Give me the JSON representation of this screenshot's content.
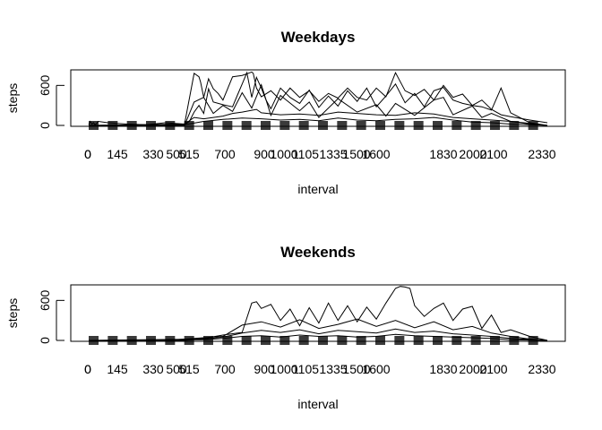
{
  "chart_data": [
    {
      "type": "line",
      "title": "Weekdays",
      "xlabel": "interval",
      "ylabel": "steps",
      "yticks": [
        0,
        600
      ],
      "ylim": [
        0,
        806
      ],
      "x_tick_labels": [
        "0",
        "0",
        "145",
        "330",
        "500",
        "515",
        "700",
        "900",
        "1000",
        "1105",
        "1335",
        "1500",
        "1600",
        "1830",
        "2000",
        "2100",
        "2330"
      ],
      "grid": false,
      "legend": "none",
      "line_color": "#000000",
      "series": [
        {
          "x": [
            0,
            5,
            10,
            15,
            20,
            25,
            30,
            100,
            200,
            300,
            400,
            500,
            530,
            545,
            550,
            600,
            615,
            630,
            645,
            700,
            730,
            800,
            830,
            835,
            845,
            900,
            930,
            1000,
            1030,
            1100,
            1130,
            1200,
            1230,
            1300,
            1330,
            1400,
            1430,
            1500,
            1530,
            1600,
            1630,
            1700,
            1730,
            1800,
            1830,
            1900,
            1930,
            2000,
            2030,
            2100,
            2130,
            2200,
            2300,
            2355
          ],
          "y": [
            10,
            60,
            20,
            40,
            10,
            30,
            60,
            40,
            20,
            10,
            40,
            20,
            780,
            730,
            650,
            420,
            700,
            550,
            480,
            380,
            730,
            750,
            800,
            780,
            560,
            430,
            520,
            380,
            560,
            420,
            520,
            360,
            480,
            410,
            560,
            420,
            380,
            560,
            430,
            790,
            520,
            450,
            540,
            380,
            600,
            420,
            470,
            300,
            380,
            240,
            160,
            130,
            80,
            40
          ]
        },
        {
          "x": [
            0,
            100,
            200,
            300,
            400,
            500,
            515,
            530,
            545,
            600,
            615,
            630,
            700,
            730,
            745,
            800,
            815,
            830,
            845,
            900,
            915,
            930,
            1000,
            1030,
            1100,
            1130,
            1200,
            1230,
            1300,
            1330,
            1400,
            1430,
            1500,
            1530,
            1600,
            1630,
            1700,
            1730,
            1800,
            1830,
            1900,
            1930,
            2000,
            2030,
            2100,
            2130,
            2200,
            2300,
            2355
          ],
          "y": [
            0,
            0,
            0,
            0,
            0,
            10,
            60,
            200,
            300,
            180,
            550,
            350,
            310,
            280,
            450,
            620,
            790,
            420,
            720,
            560,
            380,
            250,
            560,
            420,
            330,
            530,
            270,
            440,
            290,
            520,
            360,
            560,
            280,
            440,
            620,
            340,
            480,
            280,
            520,
            570,
            380,
            330,
            300,
            280,
            230,
            560,
            190,
            40,
            0
          ]
        },
        {
          "x": [
            0,
            300,
            500,
            530,
            600,
            630,
            700,
            730,
            800,
            830,
            900,
            930,
            1000,
            1100,
            1130,
            1200,
            1300,
            1400,
            1500,
            1530,
            1600,
            1700,
            1800,
            1830,
            1900,
            2000,
            2030,
            2100,
            2200,
            2300,
            2355
          ],
          "y": [
            0,
            0,
            0,
            350,
            420,
            180,
            300,
            210,
            490,
            260,
            610,
            150,
            450,
            220,
            350,
            120,
            400,
            200,
            310,
            140,
            330,
            150,
            380,
            420,
            160,
            290,
            120,
            180,
            60,
            20,
            0
          ]
        },
        {
          "x": [
            0,
            500,
            530,
            600,
            700,
            730,
            800,
            845,
            900,
            1000,
            1100,
            1200,
            1300,
            1400,
            1500,
            1600,
            1700,
            1800,
            1900,
            2000,
            2100,
            2200,
            2300,
            2355
          ],
          "y": [
            0,
            20,
            120,
            100,
            140,
            180,
            200,
            240,
            190,
            160,
            170,
            150,
            200,
            180,
            160,
            150,
            190,
            170,
            120,
            100,
            80,
            60,
            30,
            0
          ]
        },
        {
          "x": [
            0,
            500,
            600,
            700,
            800,
            900,
            1000,
            1100,
            1200,
            1300,
            1400,
            1500,
            1600,
            1700,
            1800,
            1900,
            2000,
            2100,
            2200,
            2355
          ],
          "y": [
            0,
            10,
            60,
            90,
            110,
            100,
            80,
            90,
            70,
            110,
            80,
            70,
            90,
            100,
            120,
            80,
            50,
            40,
            20,
            0
          ]
        }
      ]
    },
    {
      "type": "line",
      "title": "Weekends",
      "xlabel": "interval",
      "ylabel": "steps",
      "yticks": [
        0,
        600
      ],
      "ylim": [
        0,
        806
      ],
      "x_tick_labels": [
        "0",
        "0",
        "145",
        "330",
        "500",
        "515",
        "700",
        "900",
        "1000",
        "1105",
        "1335",
        "1500",
        "1600",
        "1830",
        "2000",
        "2100",
        "2330"
      ],
      "grid": false,
      "legend": "none",
      "line_color": "#000000",
      "series": [
        {
          "x": [
            0,
            100,
            200,
            300,
            400,
            500,
            600,
            700,
            800,
            830,
            845,
            900,
            930,
            1000,
            1030,
            1100,
            1130,
            1200,
            1230,
            1300,
            1330,
            1400,
            1430,
            1500,
            1530,
            1600,
            1615,
            1630,
            1645,
            1700,
            1730,
            1800,
            1830,
            1900,
            1930,
            2000,
            2030,
            2100,
            2130,
            2200,
            2300,
            2355
          ],
          "y": [
            0,
            0,
            0,
            0,
            0,
            0,
            30,
            80,
            120,
            560,
            580,
            480,
            540,
            300,
            470,
            220,
            490,
            260,
            560,
            300,
            520,
            280,
            500,
            320,
            560,
            780,
            810,
            800,
            780,
            520,
            360,
            480,
            560,
            300,
            470,
            510,
            180,
            380,
            120,
            160,
            60,
            0
          ]
        },
        {
          "x": [
            0,
            200,
            400,
            600,
            700,
            800,
            900,
            1000,
            1100,
            1200,
            1300,
            1400,
            1500,
            1600,
            1700,
            1800,
            1900,
            2000,
            2100,
            2200,
            2300,
            2355
          ],
          "y": [
            0,
            0,
            0,
            40,
            60,
            230,
            280,
            200,
            310,
            180,
            240,
            320,
            210,
            300,
            190,
            280,
            160,
            210,
            110,
            60,
            20,
            0
          ]
        },
        {
          "x": [
            0,
            600,
            700,
            800,
            900,
            1000,
            1100,
            1200,
            1300,
            1400,
            1500,
            1600,
            1700,
            1800,
            1900,
            2000,
            2100,
            2200,
            2355
          ],
          "y": [
            0,
            20,
            50,
            110,
            150,
            120,
            160,
            100,
            150,
            130,
            110,
            170,
            120,
            140,
            100,
            80,
            60,
            30,
            0
          ]
        },
        {
          "x": [
            0,
            600,
            700,
            800,
            900,
            1000,
            1100,
            1200,
            1300,
            1400,
            1500,
            1600,
            1700,
            1800,
            1900,
            2000,
            2100,
            2200,
            2355
          ],
          "y": [
            0,
            10,
            30,
            60,
            70,
            50,
            80,
            60,
            70,
            50,
            60,
            90,
            70,
            60,
            50,
            40,
            30,
            10,
            0
          ]
        }
      ]
    }
  ]
}
